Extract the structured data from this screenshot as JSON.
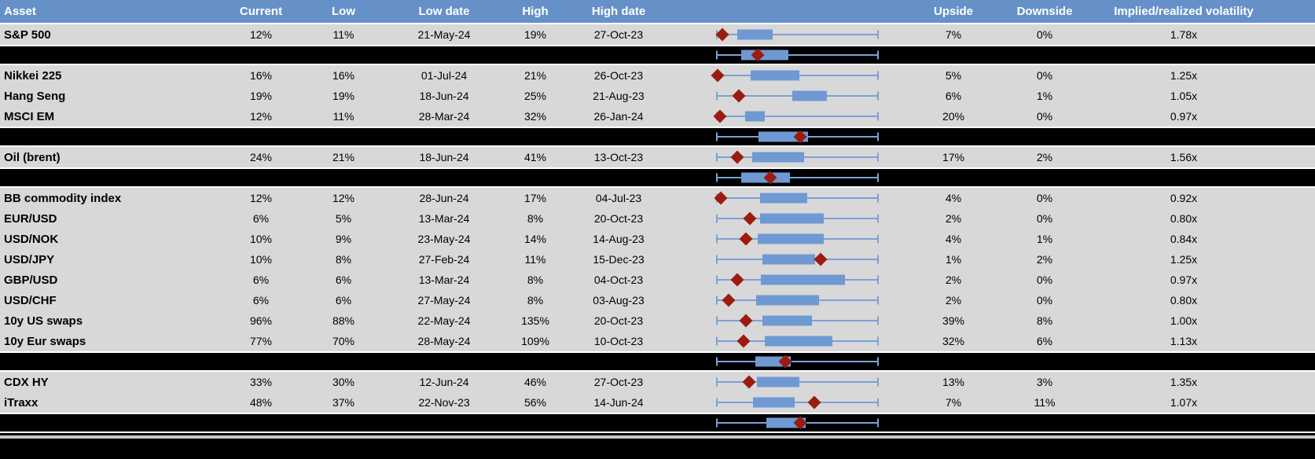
{
  "colors": {
    "header_blue": "#6691c8",
    "row_gray": "#d8d8d8",
    "separator_black": "#000000",
    "box_blue": "#6f99d2",
    "whisker_blue": "#7ba1d6",
    "diamond_red": "#9c1b10",
    "separator_line_white": "#ffffff",
    "footer_line_gray": "#c9c9c9"
  },
  "header": {
    "asset": "Asset",
    "current": "Current",
    "low": "Low",
    "low_date": "Low date",
    "high": "High",
    "high_date": "High date",
    "upside": "Upside",
    "downside": "Downside",
    "implied_realized": "Implied/realized volatility"
  },
  "chart_data": {
    "type": "boxplot-table",
    "columns": [
      "Asset",
      "Current",
      "Low",
      "Low date",
      "High",
      "High date",
      "range boxplot",
      "Upside",
      "Downside",
      "Implied/realized volatility"
    ],
    "boxplot_legend": {
      "diamond": "current level within normalized low-high range",
      "box": "middle range band",
      "whiskers": "full normalized range 0-1",
      "x_range": [
        0,
        1
      ]
    },
    "rows": [
      {
        "type": "asset",
        "asset": "S&P 500",
        "current": "12%",
        "low": "11%",
        "low_date": "21-May-24",
        "high": "19%",
        "high_date": "27-Oct-23",
        "upside": "7%",
        "downside": "0%",
        "implied_realized": "1.78x",
        "plot": {
          "diamond": 0.034,
          "box_low": 0.127,
          "box_high": 0.346
        }
      },
      {
        "type": "separator",
        "plot": {
          "diamond": 0.254,
          "box_low": 0.151,
          "box_high": 0.444
        }
      },
      {
        "type": "asset",
        "asset": "Nikkei 225",
        "current": "16%",
        "low": "16%",
        "low_date": "01-Jul-24",
        "high": "21%",
        "high_date": "26-Oct-23",
        "upside": "5%",
        "downside": "0%",
        "implied_realized": "1.25x",
        "plot": {
          "diamond": 0.005,
          "box_low": 0.21,
          "box_high": 0.512
        }
      },
      {
        "type": "asset",
        "asset": "Hang Seng",
        "current": "19%",
        "low": "19%",
        "low_date": "18-Jun-24",
        "high": "25%",
        "high_date": "21-Aug-23",
        "upside": "6%",
        "downside": "1%",
        "implied_realized": "1.05x",
        "plot": {
          "diamond": 0.137,
          "box_low": 0.468,
          "box_high": 0.683
        }
      },
      {
        "type": "asset",
        "asset": "MSCI EM",
        "current": "12%",
        "low": "11%",
        "low_date": "28-Mar-24",
        "high": "32%",
        "high_date": "26-Jan-24",
        "upside": "20%",
        "downside": "0%",
        "implied_realized": "0.97x",
        "plot": {
          "diamond": 0.02,
          "box_low": 0.176,
          "box_high": 0.298
        }
      },
      {
        "type": "separator",
        "plot": {
          "diamond": 0.517,
          "box_low": 0.259,
          "box_high": 0.566
        }
      },
      {
        "type": "asset",
        "asset": "Oil (brent)",
        "current": "24%",
        "low": "21%",
        "low_date": "18-Jun-24",
        "high": "41%",
        "high_date": "13-Oct-23",
        "upside": "17%",
        "downside": "2%",
        "implied_realized": "1.56x",
        "plot": {
          "diamond": 0.127,
          "box_low": 0.22,
          "box_high": 0.541
        }
      },
      {
        "type": "separator",
        "plot": {
          "diamond": 0.332,
          "box_low": 0.151,
          "box_high": 0.454
        }
      },
      {
        "type": "asset",
        "asset": "BB commodity index",
        "current": "12%",
        "low": "12%",
        "low_date": "28-Jun-24",
        "high": "17%",
        "high_date": "04-Jul-23",
        "upside": "4%",
        "downside": "0%",
        "implied_realized": "0.92x",
        "plot": {
          "diamond": 0.024,
          "box_low": 0.268,
          "box_high": 0.561
        }
      },
      {
        "type": "asset",
        "asset": "EUR/USD",
        "current": "6%",
        "low": "5%",
        "low_date": "13-Mar-24",
        "high": "8%",
        "high_date": "20-Oct-23",
        "upside": "2%",
        "downside": "0%",
        "implied_realized": "0.80x",
        "plot": {
          "diamond": 0.205,
          "box_low": 0.268,
          "box_high": 0.663
        }
      },
      {
        "type": "asset",
        "asset": "USD/NOK",
        "current": "10%",
        "low": "9%",
        "low_date": "23-May-24",
        "high": "14%",
        "high_date": "14-Aug-23",
        "upside": "4%",
        "downside": "1%",
        "implied_realized": "0.84x",
        "plot": {
          "diamond": 0.18,
          "box_low": 0.254,
          "box_high": 0.663
        }
      },
      {
        "type": "asset",
        "asset": "USD/JPY",
        "current": "10%",
        "low": "8%",
        "low_date": "27-Feb-24",
        "high": "11%",
        "high_date": "15-Dec-23",
        "upside": "1%",
        "downside": "2%",
        "implied_realized": "1.25x",
        "plot": {
          "diamond": 0.644,
          "box_low": 0.283,
          "box_high": 0.61
        }
      },
      {
        "type": "asset",
        "asset": "GBP/USD",
        "current": "6%",
        "low": "6%",
        "low_date": "13-Mar-24",
        "high": "8%",
        "high_date": "04-Oct-23",
        "upside": "2%",
        "downside": "0%",
        "implied_realized": "0.97x",
        "plot": {
          "diamond": 0.127,
          "box_low": 0.273,
          "box_high": 0.795
        }
      },
      {
        "type": "asset",
        "asset": "USD/CHF",
        "current": "6%",
        "low": "6%",
        "low_date": "27-May-24",
        "high": "8%",
        "high_date": "03-Aug-23",
        "upside": "2%",
        "downside": "0%",
        "implied_realized": "0.80x",
        "plot": {
          "diamond": 0.073,
          "box_low": 0.244,
          "box_high": 0.634
        }
      },
      {
        "type": "asset",
        "asset": "10y US swaps",
        "current": "96%",
        "low": "88%",
        "low_date": "22-May-24",
        "high": "135%",
        "high_date": "20-Oct-23",
        "upside": "39%",
        "downside": "8%",
        "implied_realized": "1.00x",
        "plot": {
          "diamond": 0.18,
          "box_low": 0.283,
          "box_high": 0.59
        }
      },
      {
        "type": "asset",
        "asset": "10y Eur swaps",
        "current": "77%",
        "low": "70%",
        "low_date": "28-May-24",
        "high": "109%",
        "high_date": "10-Oct-23",
        "upside": "32%",
        "downside": "6%",
        "implied_realized": "1.13x",
        "plot": {
          "diamond": 0.166,
          "box_low": 0.298,
          "box_high": 0.717
        }
      },
      {
        "type": "separator",
        "plot": {
          "diamond": 0.424,
          "box_low": 0.239,
          "box_high": 0.459
        }
      },
      {
        "type": "asset",
        "asset": "CDX HY",
        "current": "33%",
        "low": "30%",
        "low_date": "12-Jun-24",
        "high": "46%",
        "high_date": "27-Oct-23",
        "upside": "13%",
        "downside": "3%",
        "implied_realized": "1.35x",
        "plot": {
          "diamond": 0.2,
          "box_low": 0.249,
          "box_high": 0.512
        }
      },
      {
        "type": "asset",
        "asset": "iTraxx",
        "current": "48%",
        "low": "37%",
        "low_date": "22-Nov-23",
        "high": "56%",
        "high_date": "14-Jun-24",
        "upside": "7%",
        "downside": "11%",
        "implied_realized": "1.07x",
        "plot": {
          "diamond": 0.605,
          "box_low": 0.224,
          "box_high": 0.483
        }
      },
      {
        "type": "separator",
        "plot": {
          "diamond": 0.517,
          "box_low": 0.307,
          "box_high": 0.551
        }
      }
    ]
  }
}
